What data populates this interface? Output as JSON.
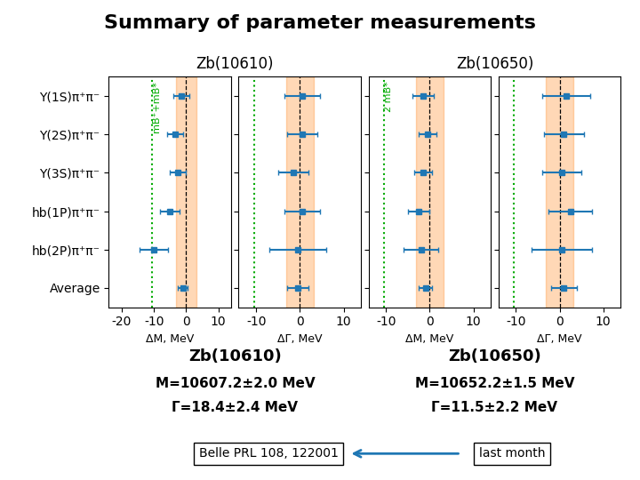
{
  "title": "Summary of parameter measurements",
  "groups": [
    {
      "name": "Zb(10610)",
      "texts": [
        "M=10607.2±2.0 MeV",
        "Γ=18.4±2.4 MeV"
      ]
    },
    {
      "name": "Zb(10650)",
      "texts": [
        "M=10652.2±1.5 MeV",
        "Γ=11.5±2.2 MeV"
      ]
    }
  ],
  "reference_boxes": [
    "Belle PRL 108, 122001",
    "last month"
  ],
  "chart_data": [
    {
      "type": "errorbar",
      "group": "Zb(10610)",
      "x_label": "ΔM, MeV",
      "categories": [
        "Y(1S)π⁺π⁻",
        "Y(2S)π⁺π⁻",
        "Y(3S)π⁺π⁻",
        "hb(1P)π⁺π⁻",
        "hb(2P)π⁺π⁻",
        "Average"
      ],
      "values": [
        -1.5,
        -3.5,
        -2.5,
        -5.0,
        -10.0,
        -1.0
      ],
      "errors": [
        2.5,
        2.5,
        2.5,
        3.0,
        4.5,
        1.5
      ],
      "xlim": [
        -24,
        14
      ],
      "xticks": [
        -20,
        -10,
        0,
        10
      ],
      "band": [
        -3.2,
        3.2
      ],
      "reference_line": 0,
      "threshold": {
        "value": -10.5,
        "label": "mB⁺+mB*",
        "color": "#00AA00"
      },
      "marker": "square"
    },
    {
      "type": "errorbar",
      "group": "Zb(10610)",
      "x_label": "ΔΓ, MeV",
      "categories": [
        "Y(1S)π⁺π⁻",
        "Y(2S)π⁺π⁻",
        "Y(3S)π⁺π⁻",
        "hb(1P)π⁺π⁻",
        "hb(2P)π⁺π⁻",
        "Average"
      ],
      "values": [
        0.5,
        0.5,
        -1.5,
        0.5,
        -0.5,
        -0.5
      ],
      "errors": [
        4.0,
        3.5,
        3.5,
        4.0,
        6.5,
        2.5
      ],
      "xlim": [
        -14,
        14
      ],
      "xticks": [
        -10,
        0,
        10
      ],
      "band": [
        -3.2,
        3.2
      ],
      "reference_line": 0,
      "threshold": {
        "value": -10.5,
        "color": "#00AA00"
      },
      "marker": "square",
      "tick_labels": "x"
    },
    {
      "type": "errorbar",
      "group": "Zb(10650)",
      "x_label": "ΔM, MeV",
      "categories": [
        "Y(1S)π⁺π⁻",
        "Y(2S)π⁺π⁻",
        "Y(3S)π⁺π⁻",
        "hb(1P)π⁺π⁻",
        "hb(2P)π⁺π⁻",
        "Average"
      ],
      "values": [
        -1.5,
        -0.5,
        -1.5,
        -2.5,
        -2.0,
        -1.0
      ],
      "errors": [
        2.5,
        2.0,
        2.0,
        2.5,
        4.0,
        1.5
      ],
      "xlim": [
        -14,
        14
      ],
      "xticks": [
        -10,
        0,
        10
      ],
      "band": [
        -3.2,
        3.2
      ],
      "reference_line": 0,
      "threshold": {
        "value": -10.5,
        "label": "2 mB*",
        "color": "#00AA00"
      },
      "marker": "square",
      "tick_labels": "x"
    },
    {
      "type": "errorbar",
      "group": "Zb(10650)",
      "x_label": "ΔΓ, MeV",
      "categories": [
        "Y(1S)π⁺π⁻",
        "Y(2S)π⁺π⁻",
        "Y(3S)π⁺π⁻",
        "hb(1P)π⁺π⁻",
        "hb(2P)π⁺π⁻",
        "Average"
      ],
      "values": [
        1.5,
        1.0,
        0.5,
        2.5,
        0.5,
        1.0
      ],
      "errors": [
        5.5,
        4.5,
        4.5,
        5.0,
        7.0,
        3.0
      ],
      "xlim": [
        -14,
        14
      ],
      "xticks": [
        -10,
        0,
        10
      ],
      "band": [
        -3.2,
        3.2
      ],
      "reference_line": 0,
      "threshold": {
        "value": -10.5,
        "color": "#00AA00"
      },
      "marker": "square",
      "tick_labels": "x"
    }
  ]
}
